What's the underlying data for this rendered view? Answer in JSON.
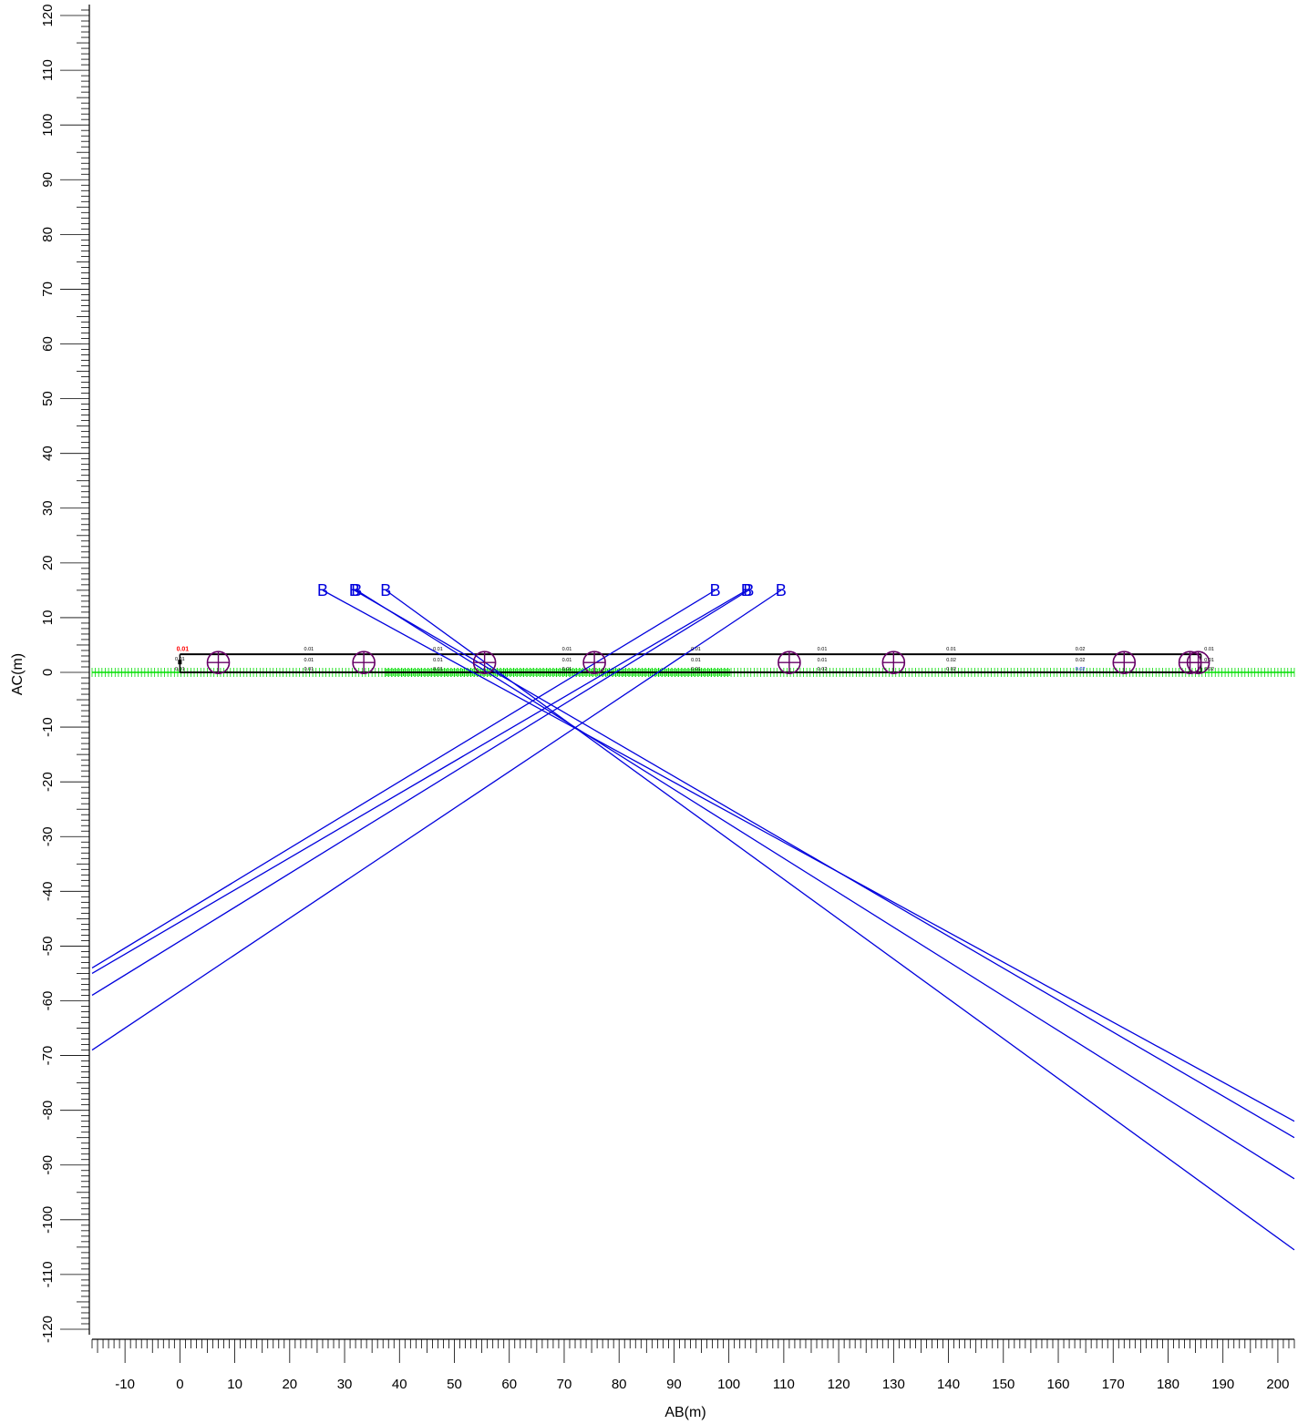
{
  "chart_data": {
    "type": "scatter",
    "xlabel": "AB(m)",
    "ylabel": "AC(m)",
    "xlim": [
      -16,
      203
    ],
    "ylim": [
      -121,
      122
    ],
    "xticks": [
      -10,
      0,
      10,
      20,
      30,
      40,
      50,
      60,
      70,
      80,
      90,
      100,
      110,
      120,
      130,
      140,
      150,
      160,
      170,
      180,
      190,
      200
    ],
    "xtick_labels": [
      "-10",
      "0",
      "10",
      "20",
      "30",
      "40",
      "50",
      "60",
      "70",
      "80",
      "90",
      "100",
      "110",
      "120",
      "130",
      "140",
      "150",
      "160",
      "170",
      "180",
      "190",
      "200"
    ],
    "yticks": [
      120,
      110,
      100,
      90,
      80,
      70,
      60,
      50,
      40,
      30,
      20,
      10,
      0,
      -10,
      -20,
      -30,
      -40,
      -50,
      -60,
      -70,
      -80,
      -90,
      -100,
      -110,
      -120
    ],
    "ytick_labels": [
      "120",
      "110",
      "100",
      "90",
      "80",
      "70",
      "60",
      "50",
      "40",
      "30",
      "20",
      "10",
      "0",
      "-10",
      "-20",
      "-30",
      "-40",
      "-50",
      "-60",
      "-70",
      "-80",
      "-90",
      "-100",
      "-110",
      "-120"
    ],
    "grid": false,
    "colors": {
      "rays": "#0000dd",
      "markers": "#660066",
      "ground": "#00dd00",
      "structure": "#000000",
      "highlight": "#ff0000"
    },
    "structure_lines": [
      {
        "x": [
          0,
          186
        ],
        "y": [
          3.3,
          3.3
        ]
      },
      {
        "x": [
          0,
          186
        ],
        "y": [
          0,
          0
        ]
      }
    ],
    "ground_band": {
      "x": [
        -16,
        203
      ],
      "y": 0,
      "dense_range": [
        37,
        100
      ]
    },
    "source_labels": [
      {
        "text": "B",
        "x": 26,
        "y": 15
      },
      {
        "text": "B",
        "x": 31.8,
        "y": 15
      },
      {
        "text": "B",
        "x": 32.2,
        "y": 15
      },
      {
        "text": "B",
        "x": 37.5,
        "y": 15
      },
      {
        "text": "B",
        "x": 97.5,
        "y": 15
      },
      {
        "text": "B",
        "x": 103.2,
        "y": 15
      },
      {
        "text": "B",
        "x": 103.6,
        "y": 15
      },
      {
        "text": "B",
        "x": 109.5,
        "y": 15
      }
    ],
    "rays": [
      {
        "x": [
          26,
          203
        ],
        "y": [
          15,
          -82
        ]
      },
      {
        "x": [
          31.8,
          203
        ],
        "y": [
          15,
          -85
        ]
      },
      {
        "x": [
          32.2,
          203
        ],
        "y": [
          15,
          -92.5
        ]
      },
      {
        "x": [
          37.5,
          203
        ],
        "y": [
          15,
          -105.5
        ]
      },
      {
        "x": [
          97.5,
          -16
        ],
        "y": [
          15,
          -54
        ]
      },
      {
        "x": [
          103.2,
          -16
        ],
        "y": [
          15,
          -55
        ]
      },
      {
        "x": [
          103.6,
          -16
        ],
        "y": [
          15,
          -59
        ]
      },
      {
        "x": [
          109.5,
          -16
        ],
        "y": [
          15,
          -69
        ]
      }
    ],
    "markers": [
      {
        "x": 7,
        "y": 1.8
      },
      {
        "x": 33.5,
        "y": 1.8
      },
      {
        "x": 55.5,
        "y": 1.8
      },
      {
        "x": 75.5,
        "y": 1.8
      },
      {
        "x": 111,
        "y": 1.8
      },
      {
        "x": 130,
        "y": 1.8
      },
      {
        "x": 172,
        "y": 1.8
      },
      {
        "x": 184,
        "y": 1.8
      },
      {
        "x": 185.5,
        "y": 1.8
      }
    ],
    "annotations": [
      {
        "text": "0.01",
        "x": 0.5,
        "y": 3.9,
        "color": "#ff0000",
        "bold": true
      },
      {
        "text": "0.01",
        "x": 0,
        "y": 2.2,
        "color": "#000000"
      },
      {
        "text": "0.01",
        "x": 0,
        "y": 0.3,
        "color": "#000000"
      },
      {
        "text": "0.01",
        "x": 23.5,
        "y": 4.0,
        "color": "#000000"
      },
      {
        "text": "0.01",
        "x": 23.5,
        "y": 2.0,
        "color": "#000000"
      },
      {
        "text": "0.01",
        "x": 23.5,
        "y": 0.3,
        "color": "#000000"
      },
      {
        "text": "0.01",
        "x": 47,
        "y": 4.0,
        "color": "#000000"
      },
      {
        "text": "0.01",
        "x": 47,
        "y": 2.0,
        "color": "#000000"
      },
      {
        "text": "0.01",
        "x": 47,
        "y": 0.3,
        "color": "#000000"
      },
      {
        "text": "0.01",
        "x": 70.5,
        "y": 4.0,
        "color": "#000000"
      },
      {
        "text": "0.01",
        "x": 70.5,
        "y": 2.0,
        "color": "#000000"
      },
      {
        "text": "0.01",
        "x": 70.5,
        "y": 0.3,
        "color": "#000000"
      },
      {
        "text": "0.01",
        "x": 94,
        "y": 4.0,
        "color": "#000000"
      },
      {
        "text": "0.01",
        "x": 94,
        "y": 2.0,
        "color": "#000000"
      },
      {
        "text": "0.01",
        "x": 94,
        "y": 0.3,
        "color": "#000000"
      },
      {
        "text": "0.01",
        "x": 117,
        "y": 4.0,
        "color": "#000000"
      },
      {
        "text": "0.01",
        "x": 117,
        "y": 2.0,
        "color": "#000000"
      },
      {
        "text": "0.02",
        "x": 117,
        "y": 0.3,
        "color": "#000000"
      },
      {
        "text": "0.01",
        "x": 140.5,
        "y": 4.0,
        "color": "#000000"
      },
      {
        "text": "0.02",
        "x": 140.5,
        "y": 2.0,
        "color": "#000000"
      },
      {
        "text": "0.02",
        "x": 140.5,
        "y": 0.3,
        "color": "#000000"
      },
      {
        "text": "0.02",
        "x": 164,
        "y": 4.0,
        "color": "#000000"
      },
      {
        "text": "0.02",
        "x": 164,
        "y": 2.0,
        "color": "#000000"
      },
      {
        "text": "0.02",
        "x": 164,
        "y": 0.3,
        "color": "#0000dd"
      },
      {
        "text": "0.01",
        "x": 187.5,
        "y": 4.0,
        "color": "#000000"
      },
      {
        "text": "0.01",
        "x": 187.5,
        "y": 2.0,
        "color": "#000000"
      },
      {
        "text": "0.02",
        "x": 187.5,
        "y": 0.3,
        "color": "#000000"
      }
    ]
  }
}
